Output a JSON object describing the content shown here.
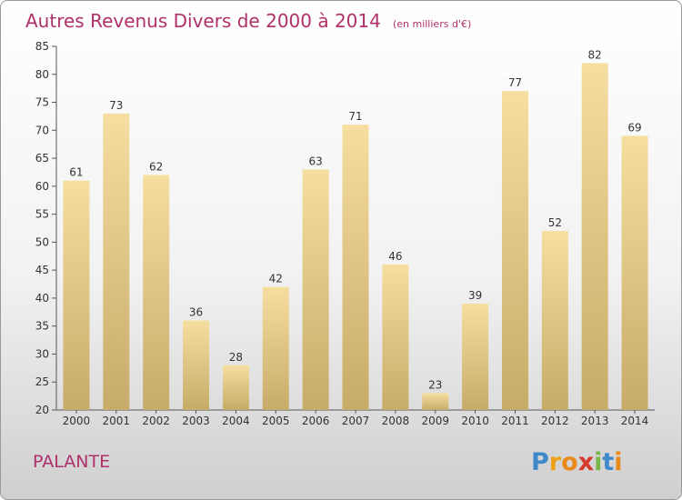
{
  "chart_data": {
    "type": "bar",
    "title": "Autres Revenus Divers de 2000 à 2014",
    "subtitle": "(en milliers d'€)",
    "categories": [
      "2000",
      "2001",
      "2002",
      "2003",
      "2004",
      "2005",
      "2006",
      "2007",
      "2008",
      "2009",
      "2010",
      "2011",
      "2012",
      "2013",
      "2014"
    ],
    "values": [
      61,
      73,
      62,
      36,
      28,
      42,
      63,
      71,
      46,
      23,
      39,
      77,
      52,
      82,
      69
    ],
    "ylim": [
      20,
      85
    ],
    "yticks": [
      20,
      25,
      30,
      35,
      40,
      45,
      50,
      55,
      60,
      65,
      70,
      75,
      80,
      85
    ],
    "grid": false,
    "legend": "none",
    "bar_color_light": "#f6dea0",
    "bar_color_dark": "#c7ab68"
  },
  "footer": {
    "town": "PALANTE",
    "logo": {
      "letters": [
        "P",
        "r",
        "o",
        "x",
        "i",
        "t",
        "i"
      ],
      "colors": [
        "#3f89c9",
        "#f0a11b",
        "#e8891a",
        "#d63a2c",
        "#7ab648",
        "#3f89c9",
        "#e8891a"
      ]
    }
  },
  "colors": {
    "title": "#b0306a",
    "axis": "#555555"
  }
}
